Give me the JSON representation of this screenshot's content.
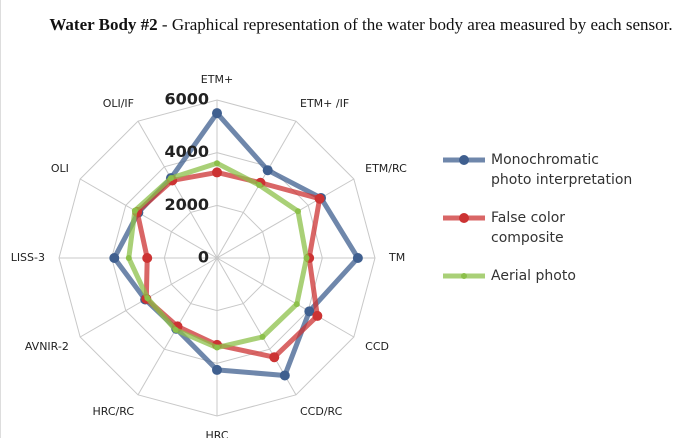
{
  "chart_data": {
    "type": "radar",
    "title": "Water Body #2",
    "subtitle": "- Graphical representation of the water body area measured by each sensor.",
    "categories": [
      "ETM+",
      "ETM+ /IF",
      "ETM/RC",
      "TM",
      "CCD",
      "CCD/RC",
      "HRC",
      "HRC/RC",
      "AVNIR-2",
      "LISS-3",
      "OLI",
      "OLI/IF"
    ],
    "series": [
      {
        "name": "Monochromatic photo interpretation",
        "color": "#3f5f8f",
        "values": [
          5500,
          3850,
          4560,
          5350,
          4050,
          5150,
          4250,
          3100,
          3150,
          3900,
          3450,
          3500
        ]
      },
      {
        "name": "False color composite",
        "color": "#cc3333",
        "values": [
          3250,
          3300,
          4500,
          3500,
          4400,
          4350,
          3300,
          3000,
          3100,
          2650,
          3500,
          3400
        ]
      },
      {
        "name": "Aerial photo",
        "color": "#8cc04a",
        "values": [
          3600,
          3200,
          3550,
          3400,
          3500,
          3460,
          3400,
          3150,
          3050,
          3350,
          3600,
          3500
        ]
      }
    ],
    "ylim": [
      0,
      6000
    ],
    "yticks": [
      0,
      2000,
      4000,
      6000
    ],
    "grid": true
  }
}
